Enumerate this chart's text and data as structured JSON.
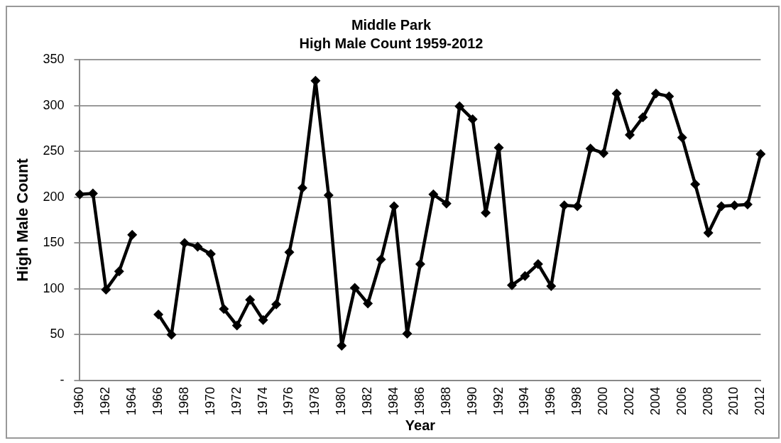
{
  "chart_data": {
    "type": "line",
    "title": "Middle Park",
    "subtitle": "High Male Count 1959-2012",
    "xlabel": "Year",
    "ylabel": "High Male Count",
    "categories": [
      "1960",
      null,
      "1962",
      null,
      "1964",
      null,
      "1966",
      null,
      "1968",
      null,
      "1970",
      null,
      "1972",
      null,
      "1974",
      null,
      "1976",
      null,
      "1978",
      null,
      "1980",
      null,
      "1982",
      null,
      "1984",
      null,
      "1986",
      null,
      "1988",
      null,
      "1990",
      null,
      "1992",
      null,
      "1994",
      null,
      "1996",
      null,
      "1998",
      null,
      "2000",
      null,
      "2002",
      null,
      "2004",
      null,
      "2006",
      null,
      "2008",
      null,
      "2010",
      null,
      "2012"
    ],
    "series": [
      {
        "color": "#000000",
        "values": [
          203,
          204,
          99,
          119,
          159,
          null,
          72,
          50,
          150,
          146,
          138,
          78,
          60,
          88,
          66,
          83,
          140,
          210,
          327,
          202,
          38,
          101,
          84,
          132,
          190,
          51,
          127,
          203,
          193,
          299,
          285,
          183,
          254,
          104,
          114,
          127,
          103,
          191,
          190,
          253,
          248,
          313,
          268,
          287,
          313,
          310,
          265,
          214,
          161,
          190,
          191,
          192,
          247
        ]
      }
    ],
    "ylim": [
      0,
      350
    ],
    "yticks": [
      {
        "value": 0,
        "label": "-"
      },
      50,
      100,
      150,
      200,
      250,
      300,
      350
    ],
    "grid": "y",
    "legend": false,
    "marker": "diamond",
    "line_style": "solid"
  }
}
